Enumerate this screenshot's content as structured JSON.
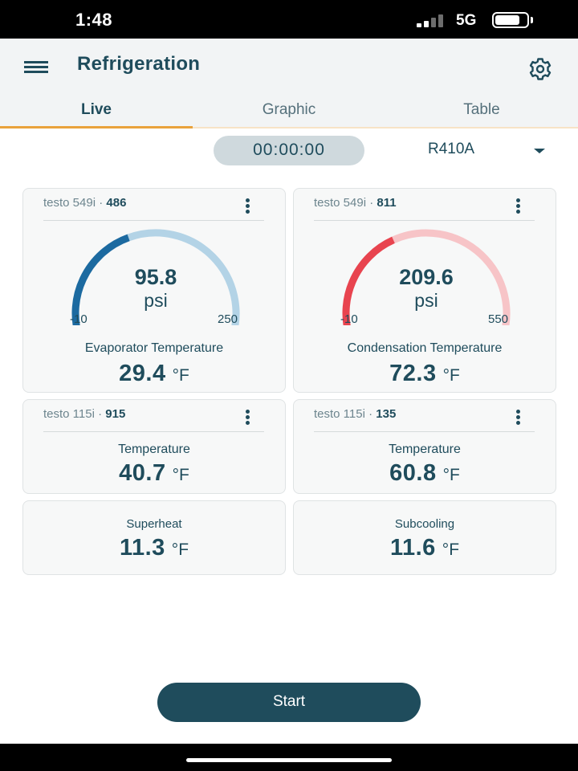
{
  "status_bar": {
    "time": "1:48",
    "network": "5G",
    "battery_level": 0.8
  },
  "header": {
    "title": "Refrigeration",
    "menu_icon": "hamburger-menu-icon",
    "settings_icon": "gear-icon"
  },
  "tabs": [
    {
      "label": "Live",
      "active": true
    },
    {
      "label": "Graphic",
      "active": false
    },
    {
      "label": "Table",
      "active": false
    }
  ],
  "timer": "00:00:00",
  "refrigerant": {
    "selected": "R410A"
  },
  "cards": {
    "pressure_low": {
      "device": "testo 549i",
      "separator": "·",
      "serial": "486",
      "gauge": {
        "value": "95.8",
        "unit": "psi",
        "min": "-10",
        "max": "250",
        "fill_fraction": 0.41,
        "color": "#1c6aa0",
        "track_color": "#b3d3e6"
      },
      "label": "Evaporator Temperature",
      "reading": "29.4",
      "unit": "°F"
    },
    "pressure_high": {
      "device": "testo 549i",
      "separator": "·",
      "serial": "811",
      "gauge": {
        "value": "209.6",
        "unit": "psi",
        "min": "-10",
        "max": "550",
        "fill_fraction": 0.39,
        "color": "#e8444f",
        "track_color": "#f7c4c7"
      },
      "label": "Condensation Temperature",
      "reading": "72.3",
      "unit": "°F"
    },
    "temp_1": {
      "device": "testo 115i",
      "separator": "·",
      "serial": "915",
      "label": "Temperature",
      "reading": "40.7",
      "unit": "°F"
    },
    "temp_2": {
      "device": "testo 115i",
      "separator": "·",
      "serial": "135",
      "label": "Temperature",
      "reading": "60.8",
      "unit": "°F"
    },
    "superheat": {
      "label": "Superheat",
      "reading": "11.3",
      "unit": "°F"
    },
    "subcooling": {
      "label": "Subcooling",
      "reading": "11.6",
      "unit": "°F"
    }
  },
  "start_button": {
    "label": "Start"
  },
  "colors": {
    "primary": "#1f4c5c",
    "tab_accent": "#e9a23b"
  }
}
